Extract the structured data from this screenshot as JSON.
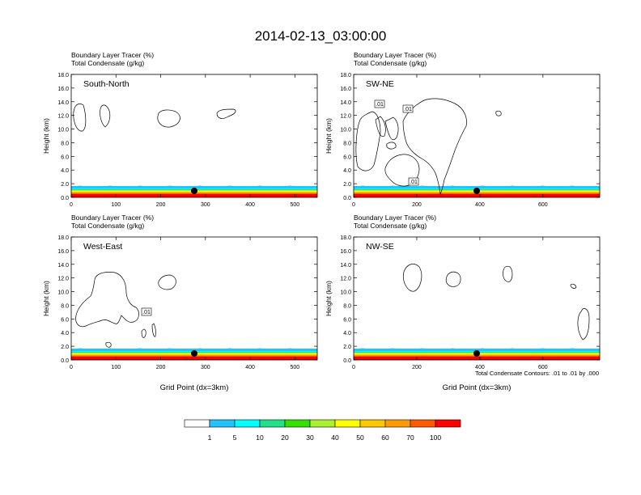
{
  "figure": {
    "title": "2014-02-13_03:00:00",
    "shared_xlabel": "Grid Point (dx=3km)",
    "contour_note": "Total Condensate Contours: .01 to .01 by .000"
  },
  "colorbar": {
    "labels": [
      "1",
      "5",
      "10",
      "20",
      "30",
      "40",
      "50",
      "60",
      "70",
      "100"
    ],
    "colors": [
      "#ffffff",
      "#2a7fff",
      "#22c3ff",
      "#00ffff",
      "#22e08a",
      "#33e000",
      "#a8f030",
      "#ffff00",
      "#ffc800",
      "#ff9a00",
      "#ff5a00",
      "#ff0000"
    ]
  },
  "chart_data": [
    {
      "type": "contour",
      "panel": "South-North",
      "header_lines": [
        "Boundary Layer Tracer   (%)",
        "Total Condensate   (g/kg)"
      ],
      "ylabel": "Height (km)",
      "xlabel": "",
      "xlim": [
        0,
        550
      ],
      "xticks": [
        "0",
        "100",
        "200",
        "300",
        "400",
        "500"
      ],
      "ylim": [
        0,
        18
      ],
      "yticks": [
        "0.0",
        "2.0",
        "4.0",
        "6.0",
        "8.0",
        "10.0",
        "12.0",
        "14.0",
        "16.0",
        "18.0"
      ],
      "marker_x": 275,
      "contour_labels": []
    },
    {
      "type": "contour",
      "panel": "SW-NE",
      "header_lines": [
        "Boundary Layer Tracer   (%)",
        "Total Condensate   (g/kg)"
      ],
      "ylabel": "Height (km)",
      "xlabel": "",
      "xlim": [
        0,
        780
      ],
      "xticks": [
        "0",
        "200",
        "400",
        "600"
      ],
      "ylim": [
        0,
        18
      ],
      "yticks": [
        "0.0",
        "2.0",
        "4.0",
        "6.0",
        "8.0",
        "10.0",
        "12.0",
        "14.0",
        "16.0",
        "18.0"
      ],
      "marker_x": 390,
      "contour_labels": [
        ".01",
        ".01",
        ".01"
      ]
    },
    {
      "type": "contour",
      "panel": "West-East",
      "header_lines": [
        "Boundary Layer Tracer   (%)",
        "Total Condensate   (g/kg)"
      ],
      "ylabel": "Height (km)",
      "xlabel": "Grid Point (dx=3km)",
      "xlim": [
        0,
        550
      ],
      "xticks": [
        "0",
        "100",
        "200",
        "300",
        "400",
        "500"
      ],
      "ylim": [
        0,
        18
      ],
      "yticks": [
        "0.0",
        "2.0",
        "4.0",
        "6.0",
        "8.0",
        "10.0",
        "12.0",
        "14.0",
        "16.0",
        "18.0"
      ],
      "marker_x": 275,
      "contour_labels": [
        ".01"
      ]
    },
    {
      "type": "contour",
      "panel": "NW-SE",
      "header_lines": [
        "Boundary Layer Tracer   (%)",
        "Total Condensate   (g/kg)"
      ],
      "ylabel": "Height (km)",
      "xlabel": "Grid Point (dx=3km)",
      "xlim": [
        0,
        780
      ],
      "xticks": [
        "0",
        "200",
        "400",
        "600"
      ],
      "ylim": [
        0,
        18
      ],
      "yticks": [
        "0.0",
        "2.0",
        "4.0",
        "6.0",
        "8.0",
        "10.0",
        "12.0",
        "14.0",
        "16.0",
        "18.0"
      ],
      "marker_x": 390,
      "contour_labels": []
    }
  ]
}
